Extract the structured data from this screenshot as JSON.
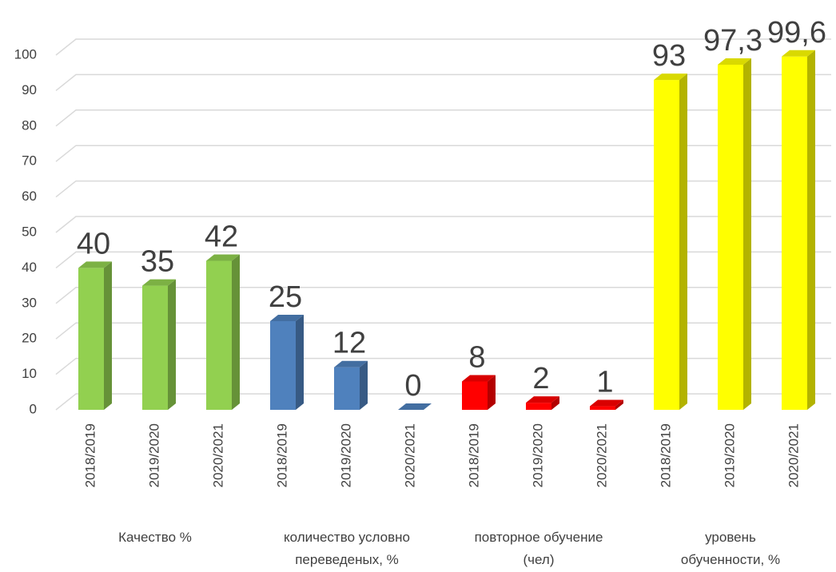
{
  "chart_data": {
    "type": "bar3d",
    "categories": [
      "2018/2019",
      "2019/2020",
      "2020/2021",
      "2018/2019",
      "2019/2020",
      "2020/2021",
      "2018/2019",
      "2019/2020",
      "2020/2021",
      "2018/2019",
      "2019/2020",
      "2020/2021"
    ],
    "groups": [
      [
        "Качество %"
      ],
      [
        "количество условно",
        "переведеных, %"
      ],
      [
        "повторное обучение",
        "(чел)"
      ],
      [
        "уровень",
        "обученности, %"
      ]
    ],
    "values": [
      40,
      35,
      42,
      25,
      12,
      0,
      8,
      2,
      1,
      93,
      97.3,
      99.6
    ],
    "value_labels": [
      "40",
      "35",
      "42",
      "25",
      "12",
      "0",
      "8",
      "2",
      "1",
      "93",
      "97,3",
      "99,6"
    ],
    "colors": [
      "#92d050",
      "#92d050",
      "#92d050",
      "#4f81bd",
      "#4f81bd",
      "#4f81bd",
      "#ff0000",
      "#ff0000",
      "#ff0000",
      "#ffff00",
      "#ffff00",
      "#ffff00"
    ],
    "ylim": [
      0,
      100
    ],
    "yticks": [
      0,
      10,
      20,
      30,
      40,
      50,
      60,
      70,
      80,
      90,
      100
    ],
    "grid": true
  }
}
